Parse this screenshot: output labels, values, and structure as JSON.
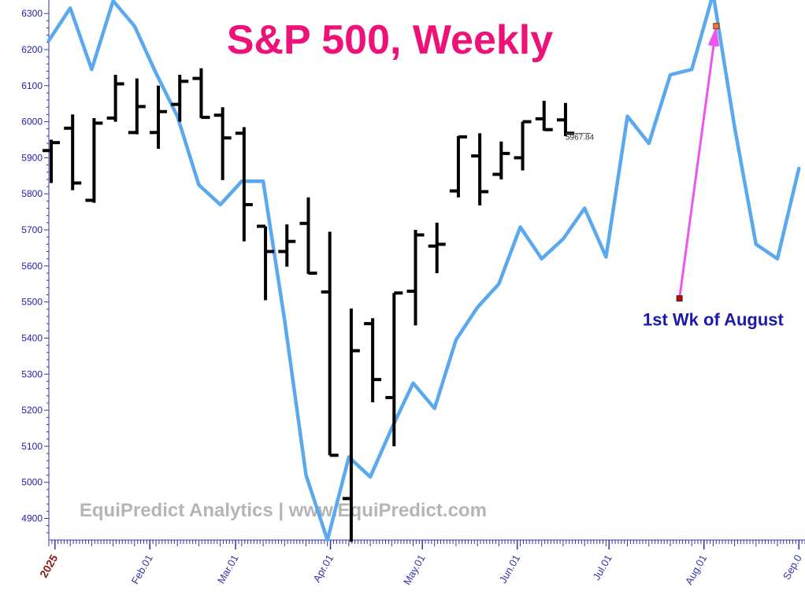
{
  "chart_data": {
    "type": "line",
    "title": "S&P 500, Weekly",
    "xlabel": "",
    "ylabel": "",
    "ylim": [
      4840,
      6320
    ],
    "xlim": [
      "2024-12-30",
      "2025-09-03"
    ],
    "y_ticks": [
      4900,
      5000,
      5100,
      5200,
      5300,
      5400,
      5500,
      5600,
      5700,
      5800,
      5900,
      6000,
      6100,
      6200,
      6300
    ],
    "x_ticks": [
      {
        "label": "2025",
        "date": "2025-01-01",
        "style": "year"
      },
      {
        "label": "Feb.01",
        "date": "2025-02-01"
      },
      {
        "label": "Mar.01",
        "date": "2025-03-01"
      },
      {
        "label": "Apr.01",
        "date": "2025-04-01"
      },
      {
        "label": "May.01",
        "date": "2025-05-01"
      },
      {
        "label": "Jun.01",
        "date": "2025-06-01"
      },
      {
        "label": "Jul.01",
        "date": "2025-07-01"
      },
      {
        "label": "Aug.01",
        "date": "2025-08-01"
      },
      {
        "label": "Sep.0",
        "date": "2025-09-01"
      }
    ],
    "grid": false,
    "colors": {
      "title": "#ee1177",
      "price_bars": "#000000",
      "forecast_line": "#5aa8ee",
      "arrow": "#ee55ee",
      "annotation": "#1a1aaa",
      "watermark": "#b5b5b5",
      "marker": "#cc0000"
    },
    "price_bars": [
      {
        "date": "2024-12-30",
        "open": 5920,
        "high": 5950,
        "low": 5830,
        "close": 5942
      },
      {
        "date": "2025-01-06",
        "open": 5982,
        "high": 6020,
        "low": 5810,
        "close": 5830
      },
      {
        "date": "2025-01-13",
        "open": 5782,
        "high": 6010,
        "low": 5775,
        "close": 5996
      },
      {
        "date": "2025-01-20",
        "open": 6010,
        "high": 6130,
        "low": 6000,
        "close": 6105
      },
      {
        "date": "2025-01-27",
        "open": 5970,
        "high": 6120,
        "low": 5965,
        "close": 6042
      },
      {
        "date": "2025-02-03",
        "open": 5970,
        "high": 6100,
        "low": 5925,
        "close": 6028
      },
      {
        "date": "2025-02-10",
        "open": 6048,
        "high": 6130,
        "low": 6000,
        "close": 6112
      },
      {
        "date": "2025-02-17",
        "open": 6120,
        "high": 6148,
        "low": 6010,
        "close": 6012
      },
      {
        "date": "2025-02-24",
        "open": 6018,
        "high": 6040,
        "low": 5838,
        "close": 5955
      },
      {
        "date": "2025-03-03",
        "open": 5968,
        "high": 5985,
        "low": 5668,
        "close": 5770
      },
      {
        "date": "2025-03-10",
        "open": 5710,
        "high": 5710,
        "low": 5505,
        "close": 5640
      },
      {
        "date": "2025-03-17",
        "open": 5640,
        "high": 5715,
        "low": 5598,
        "close": 5668
      },
      {
        "date": "2025-03-24",
        "open": 5718,
        "high": 5790,
        "low": 5578,
        "close": 5580
      },
      {
        "date": "2025-03-31",
        "open": 5528,
        "high": 5695,
        "low": 5075,
        "close": 5075
      },
      {
        "date": "2025-04-07",
        "open": 4955,
        "high": 5482,
        "low": 4835,
        "close": 5365
      },
      {
        "date": "2025-04-14",
        "open": 5440,
        "high": 5455,
        "low": 5222,
        "close": 5285
      },
      {
        "date": "2025-04-21",
        "open": 5235,
        "high": 5525,
        "low": 5100,
        "close": 5525
      },
      {
        "date": "2025-04-28",
        "open": 5530,
        "high": 5700,
        "low": 5435,
        "close": 5686
      },
      {
        "date": "2025-05-05",
        "open": 5655,
        "high": 5720,
        "low": 5580,
        "close": 5660
      },
      {
        "date": "2025-05-12",
        "open": 5808,
        "high": 5960,
        "low": 5790,
        "close": 5958
      },
      {
        "date": "2025-05-19",
        "open": 5905,
        "high": 5968,
        "low": 5768,
        "close": 5806
      },
      {
        "date": "2025-05-26",
        "open": 5854,
        "high": 5945,
        "low": 5840,
        "close": 5912
      },
      {
        "date": "2025-06-02",
        "open": 5900,
        "high": 6000,
        "low": 5865,
        "close": 6000
      },
      {
        "date": "2025-06-09",
        "open": 6008,
        "high": 6058,
        "low": 5975,
        "close": 5978
      },
      {
        "date": "2025-06-16",
        "open": 6005,
        "high": 6052,
        "low": 5960,
        "close": 5968
      }
    ],
    "last_price_label": "5967.84",
    "last_price": 5967.84,
    "forecast_series": {
      "x": [
        "2024-12-30",
        "2025-01-06",
        "2025-01-13",
        "2025-01-20",
        "2025-01-27",
        "2025-02-03",
        "2025-02-10",
        "2025-02-17",
        "2025-02-24",
        "2025-03-03",
        "2025-03-10",
        "2025-03-17",
        "2025-03-24",
        "2025-03-31",
        "2025-04-07",
        "2025-04-14",
        "2025-04-21",
        "2025-04-28",
        "2025-05-05",
        "2025-05-12",
        "2025-05-19",
        "2025-05-26",
        "2025-06-02",
        "2025-06-09",
        "2025-06-16",
        "2025-06-23",
        "2025-06-30",
        "2025-07-07",
        "2025-07-14",
        "2025-07-21",
        "2025-07-28",
        "2025-08-04",
        "2025-08-11",
        "2025-08-18",
        "2025-08-25",
        "2025-09-01"
      ],
      "y": [
        6225,
        6315,
        6145,
        6335,
        6265,
        6135,
        6015,
        5825,
        5770,
        5835,
        5835,
        5450,
        5020,
        4840,
        5070,
        5015,
        5150,
        5275,
        5205,
        5395,
        5485,
        5550,
        5708,
        5620,
        5675,
        5760,
        5625,
        6015,
        5940,
        6130,
        6145,
        6355,
        5985,
        5660,
        5620,
        5870
      ]
    },
    "annotations": [
      {
        "text": "1st Wk of August",
        "x": "2025-07-12",
        "y": 5435
      },
      {
        "text": "EquiPredict Analytics | www.EquiPredict.com",
        "x": "2025-01-09",
        "y": 4905,
        "role": "watermark"
      }
    ],
    "arrow": {
      "from": {
        "x": "2025-07-24",
        "y": 5510
      },
      "to": {
        "x": "2025-08-05",
        "y": 6265
      }
    }
  }
}
